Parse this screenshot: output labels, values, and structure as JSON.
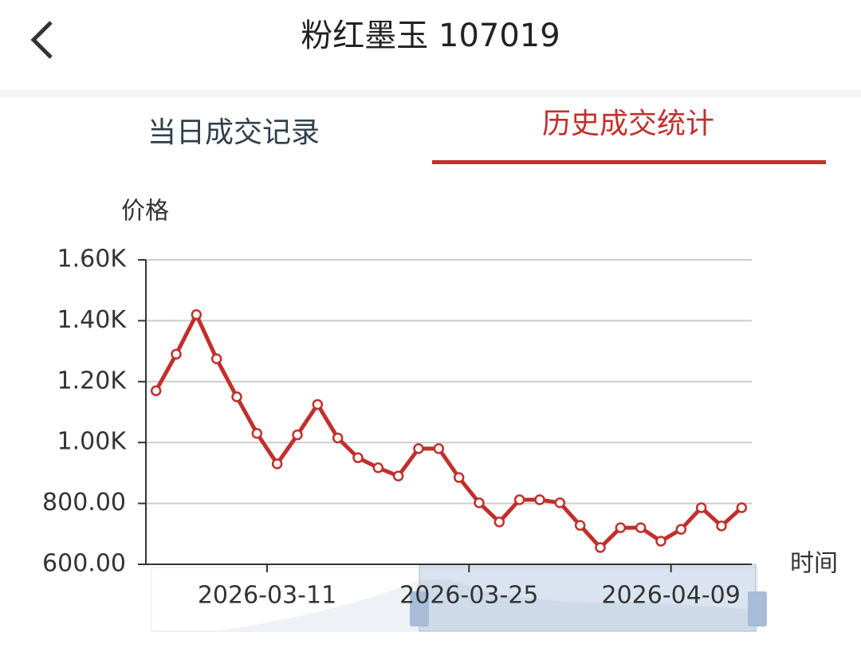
{
  "header": {
    "title": "粉红墨玉 107019"
  },
  "tabs": [
    "当日成交记录",
    "历史成交统计"
  ],
  "chart_data": {
    "type": "line",
    "y_label": "价格",
    "x_label": "时间",
    "categories": [
      null,
      null,
      null,
      null,
      null,
      null,
      null,
      null,
      null,
      null,
      null,
      null,
      null,
      null,
      null,
      null,
      null,
      null,
      null,
      null,
      null,
      null,
      null,
      null,
      null,
      null,
      null,
      null,
      null,
      null
    ],
    "series": [
      {
        "color": "#c0302c",
        "values": [
          1170,
          1290,
          1420,
          1275,
          1150,
          1030,
          930,
          1025,
          1125,
          1015,
          950,
          917,
          890,
          980,
          980,
          885,
          802,
          739,
          812,
          812,
          802,
          728,
          655,
          720,
          720,
          676,
          715,
          786,
          726,
          786
        ]
      }
    ],
    "xlim": [
      -0.5,
      29.5
    ],
    "xticks": [
      {
        "value": 5.5,
        "label": "2026-03-11"
      },
      {
        "value": 15.5,
        "label": "2026-03-25"
      },
      {
        "value": 25.5,
        "label": "2026-04-09"
      }
    ],
    "ylim": [
      600,
      1600
    ],
    "yticks": [
      {
        "value": 600,
        "label": "600.00"
      },
      {
        "value": 800,
        "label": "800.00"
      },
      {
        "value": 1000,
        "label": "1.00K"
      },
      {
        "value": 1200,
        "label": "1.20K"
      },
      {
        "value": 1400,
        "label": "1.40K"
      },
      {
        "value": 1600,
        "label": "1.60K"
      }
    ],
    "grid": true
  }
}
